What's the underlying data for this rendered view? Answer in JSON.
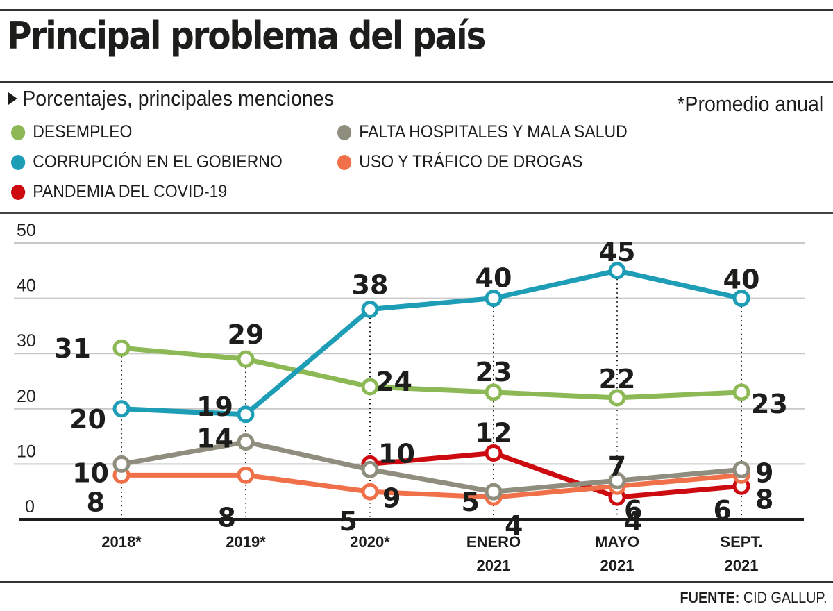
{
  "header": {
    "title": "Principal problema del país",
    "subtitle": "Porcentajes, principales menciones",
    "note": "*Promedio anual"
  },
  "legend": [
    {
      "key": "desempleo",
      "label": "DESEMPLEO",
      "color": "#8DB856"
    },
    {
      "key": "corrupcion",
      "label": "CORRUPCIÓN EN EL GOBIERNO",
      "color": "#1E9DB6"
    },
    {
      "key": "covid",
      "label": "PANDEMIA DEL COVID-19",
      "color": "#CC0A10"
    },
    {
      "key": "hospitales",
      "label": "FALTA HOSPITALES Y MALA SALUD",
      "color": "#8F8E7E"
    },
    {
      "key": "drogas",
      "label": "USO Y TRÁFICO DE DROGAS",
      "color": "#F0704A"
    }
  ],
  "footer": {
    "source_label": "FUENTE:",
    "source_value": "CID GALLUP."
  },
  "chart_data": {
    "type": "line",
    "title": "Principal problema del país",
    "subtitle": "Porcentajes, principales menciones",
    "xlabel": "",
    "ylabel": "",
    "categories": [
      "2018*",
      "2019*",
      "2020*",
      "ENERO 2021",
      "MAYO 2021",
      "SEPT. 2021"
    ],
    "category_lines": [
      [
        "2018*"
      ],
      [
        "2019*"
      ],
      [
        "2020*"
      ],
      [
        "ENERO",
        "2021"
      ],
      [
        "MAYO",
        "2021"
      ],
      [
        "SEPT.",
        "2021"
      ]
    ],
    "yticks": [
      0,
      10,
      20,
      30,
      40,
      50
    ],
    "ylim": [
      0,
      50
    ],
    "grid": true,
    "legend_position": "top",
    "series": [
      {
        "name": "DESEMPLEO",
        "color": "#8DB856",
        "values": [
          31,
          29,
          24,
          23,
          22,
          23
        ]
      },
      {
        "name": "CORRUPCIÓN EN EL GOBIERNO",
        "color": "#1E9DB6",
        "values": [
          20,
          19,
          38,
          40,
          45,
          40
        ]
      },
      {
        "name": "FALTA HOSPITALES Y MALA SALUD",
        "color": "#8F8E7E",
        "values": [
          10,
          14,
          9,
          5,
          7,
          9
        ]
      },
      {
        "name": "USO Y TRÁFICO DE DROGAS",
        "color": "#F0704A",
        "values": [
          8,
          8,
          5,
          4,
          6,
          8
        ]
      },
      {
        "name": "PANDEMIA DEL COVID-19",
        "color": "#CC0A10",
        "values": [
          null,
          null,
          10,
          12,
          4,
          6
        ]
      }
    ],
    "annotations": [
      "*Promedio anual"
    ]
  }
}
